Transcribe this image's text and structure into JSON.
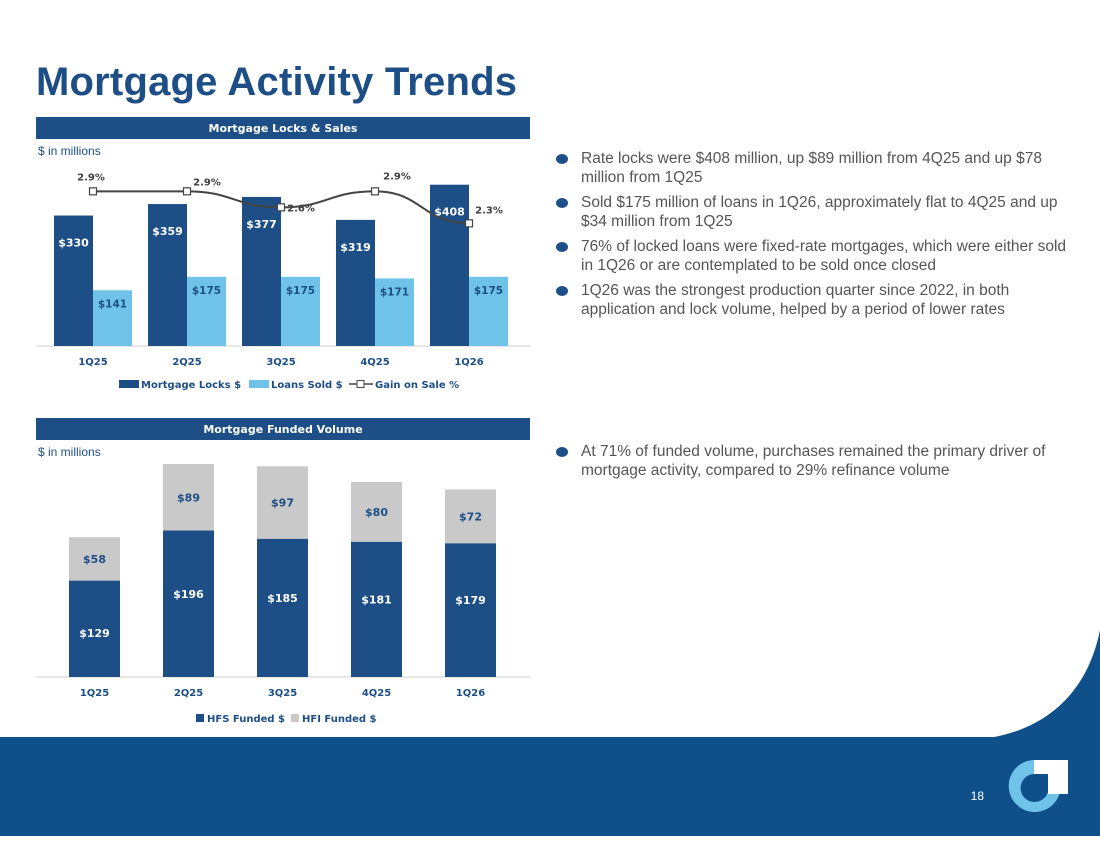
{
  "page": {
    "title": "Mortgage Activity Trends",
    "page_number": "18"
  },
  "colors": {
    "navy": "#1d4f86",
    "light_blue": "#6fc3e8",
    "gray": "#c9c9c9",
    "footer": "#0f4f8a"
  },
  "top_section": {
    "header": "Mortgage Locks & Sales",
    "units": "$ in millions",
    "bullets": [
      "Rate locks were $408 million, up $89 million from 4Q25 and up $78 million from 1Q25",
      "Sold $175 million of loans in 1Q26, approximately flat to 4Q25 and up $34 million from 1Q25",
      "76% of locked loans were fixed-rate mortgages, which were either sold in 1Q26 or are contemplated to be sold once closed",
      "1Q26 was the strongest production quarter since 2022, in both application and lock volume, helped by a period of lower rates"
    ]
  },
  "bottom_section": {
    "header": "Mortgage Funded Volume",
    "units": "$ in millions",
    "bullets": [
      "At 71% of funded volume, purchases remained the primary driver of mortgage activity, compared to 29% refinance volume"
    ]
  },
  "chart_data": [
    {
      "type": "bar",
      "categories": [
        "1Q25",
        "2Q25",
        "3Q25",
        "4Q25",
        "1Q26"
      ],
      "series": [
        {
          "name": "Mortgage Locks $",
          "kind": "bar",
          "values": [
            330,
            359,
            377,
            319,
            408
          ],
          "labels": [
            "$330",
            "$359",
            "$377",
            "$319",
            "$408"
          ]
        },
        {
          "name": "Loans Sold $",
          "kind": "bar",
          "values": [
            141,
            175,
            175,
            171,
            175
          ],
          "labels": [
            "$141",
            "$175",
            "$175",
            "$171",
            "$175"
          ]
        },
        {
          "name": "Gain on Sale %",
          "kind": "line",
          "values": [
            2.9,
            2.9,
            2.6,
            2.9,
            2.3
          ],
          "labels": [
            "2.9%",
            "2.9%",
            "2.6%",
            "2.9%",
            "2.3%"
          ]
        }
      ],
      "ylim": [
        0,
        430
      ],
      "y2lim": [
        0,
        3.0
      ],
      "legend": "bottom",
      "grid": false
    },
    {
      "type": "bar",
      "stacked": true,
      "categories": [
        "1Q25",
        "2Q25",
        "3Q25",
        "4Q25",
        "1Q26"
      ],
      "series": [
        {
          "name": "HFS Funded $",
          "values": [
            129,
            196,
            185,
            181,
            179
          ],
          "labels": [
            "$129",
            "$196",
            "$185",
            "$181",
            "$179"
          ]
        },
        {
          "name": "HFI Funded $",
          "values": [
            58,
            89,
            97,
            80,
            72
          ],
          "labels": [
            "$58",
            "$89",
            "$97",
            "$80",
            "$72"
          ]
        }
      ],
      "ylim": [
        0,
        285
      ],
      "legend": "bottom",
      "grid": false
    }
  ]
}
